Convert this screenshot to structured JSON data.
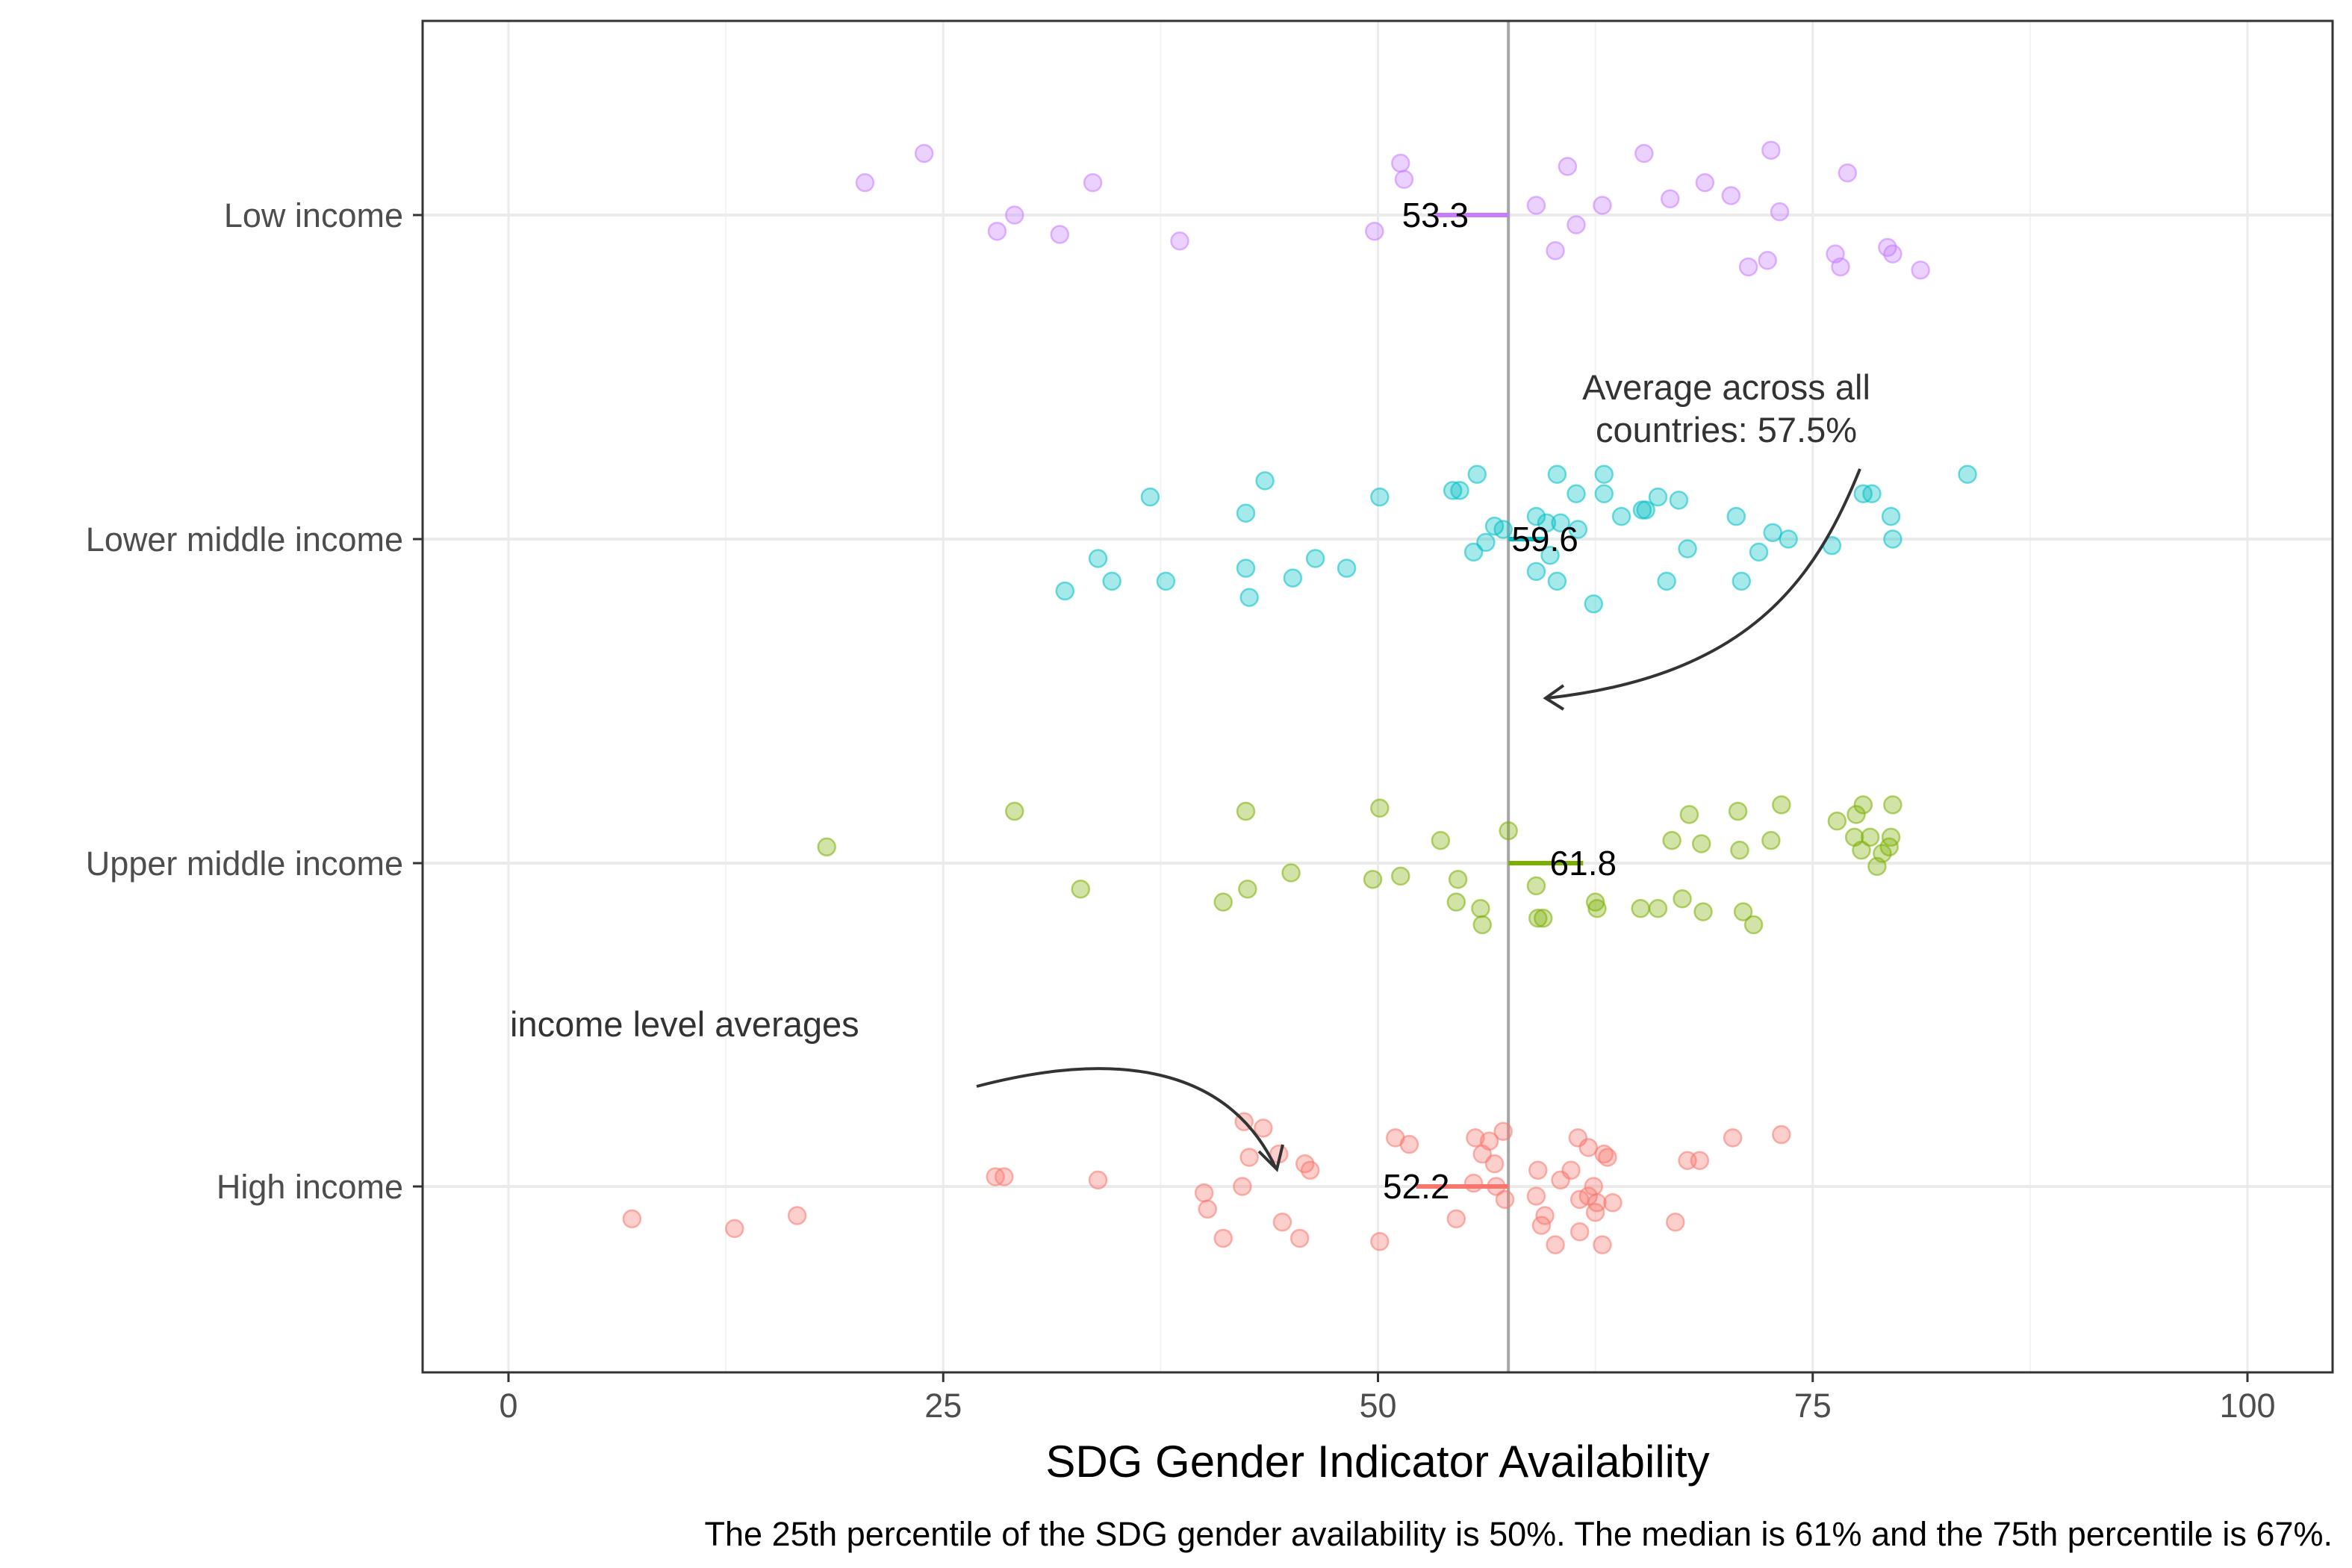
{
  "chart_data": {
    "type": "scatter",
    "title": "",
    "xlabel": "SDG Gender Indicator Availability",
    "ylabel": "",
    "xlim": [
      -5,
      105
    ],
    "x_ticks": [
      "0",
      "25",
      "50",
      "75",
      "100"
    ],
    "x_tick_values": [
      0,
      25,
      50,
      75,
      100
    ],
    "grid": true,
    "legend": "none",
    "categories": [
      "Low income",
      "Lower middle income",
      "Upper middle income",
      "High income"
    ],
    "overall_average": 57.5,
    "series": [
      {
        "name": "Low income",
        "color": "#c77cff",
        "mean": 53.3,
        "mean_label": "53.3",
        "points": [
          [
            20.5,
            0.1
          ],
          [
            23.9,
            0.19
          ],
          [
            28.1,
            -0.05
          ],
          [
            29.1,
            0.0
          ],
          [
            31.7,
            -0.06
          ],
          [
            33.6,
            0.1
          ],
          [
            38.6,
            -0.08
          ],
          [
            49.8,
            -0.05
          ],
          [
            51.3,
            0.16
          ],
          [
            51.5,
            0.11
          ],
          [
            59.1,
            0.03
          ],
          [
            60.2,
            -0.11
          ],
          [
            60.9,
            0.15
          ],
          [
            61.4,
            -0.03
          ],
          [
            62.9,
            0.03
          ],
          [
            65.3,
            0.19
          ],
          [
            66.8,
            0.05
          ],
          [
            68.8,
            0.1
          ],
          [
            70.3,
            0.06
          ],
          [
            71.3,
            -0.16
          ],
          [
            72.4,
            -0.14
          ],
          [
            72.6,
            0.2
          ],
          [
            73.1,
            0.01
          ],
          [
            76.3,
            -0.12
          ],
          [
            76.6,
            -0.16
          ],
          [
            77.0,
            0.13
          ],
          [
            79.3,
            -0.1
          ],
          [
            79.6,
            -0.12
          ],
          [
            81.2,
            -0.17
          ]
        ]
      },
      {
        "name": "Lower middle income",
        "color": "#00bfc4",
        "mean": 59.6,
        "mean_label": "59.6",
        "points": [
          [
            32.0,
            -0.16
          ],
          [
            33.9,
            -0.06
          ],
          [
            34.7,
            -0.13
          ],
          [
            36.9,
            0.13
          ],
          [
            37.8,
            -0.13
          ],
          [
            42.4,
            -0.09
          ],
          [
            42.4,
            0.08
          ],
          [
            42.6,
            -0.18
          ],
          [
            43.5,
            0.18
          ],
          [
            45.1,
            -0.12
          ],
          [
            46.4,
            -0.06
          ],
          [
            48.2,
            -0.09
          ],
          [
            50.1,
            0.13
          ],
          [
            54.3,
            0.15
          ],
          [
            54.7,
            0.15
          ],
          [
            55.5,
            -0.04
          ],
          [
            55.7,
            0.2
          ],
          [
            56.2,
            -0.01
          ],
          [
            56.7,
            0.04
          ],
          [
            57.2,
            0.03
          ],
          [
            59.1,
            -0.1
          ],
          [
            59.1,
            0.07
          ],
          [
            59.7,
            0.05
          ],
          [
            59.9,
            -0.05
          ],
          [
            60.3,
            0.2
          ],
          [
            60.3,
            -0.13
          ],
          [
            60.5,
            0.05
          ],
          [
            61.4,
            0.14
          ],
          [
            61.5,
            0.03
          ],
          [
            62.4,
            -0.2
          ],
          [
            63.0,
            0.14
          ],
          [
            63.0,
            0.2
          ],
          [
            64.0,
            0.07
          ],
          [
            65.2,
            0.09
          ],
          [
            65.4,
            0.09
          ],
          [
            66.1,
            0.13
          ],
          [
            66.6,
            -0.13
          ],
          [
            67.3,
            0.12
          ],
          [
            67.8,
            -0.03
          ],
          [
            70.6,
            0.07
          ],
          [
            70.9,
            -0.13
          ],
          [
            71.9,
            -0.04
          ],
          [
            72.7,
            0.02
          ],
          [
            73.6,
            0.0
          ],
          [
            76.1,
            -0.02
          ],
          [
            77.9,
            0.14
          ],
          [
            78.4,
            0.14
          ],
          [
            79.5,
            0.07
          ],
          [
            79.6,
            0.0
          ],
          [
            83.9,
            0.2
          ]
        ]
      },
      {
        "name": "Upper middle income",
        "color": "#7cae00",
        "mean": 61.8,
        "mean_label": "61.8",
        "points": [
          [
            18.3,
            0.05
          ],
          [
            29.1,
            0.16
          ],
          [
            32.9,
            -0.08
          ],
          [
            41.1,
            -0.12
          ],
          [
            42.4,
            0.16
          ],
          [
            42.5,
            -0.08
          ],
          [
            45.0,
            -0.03
          ],
          [
            49.7,
            -0.05
          ],
          [
            50.1,
            0.17
          ],
          [
            51.3,
            -0.04
          ],
          [
            53.6,
            0.07
          ],
          [
            54.5,
            -0.12
          ],
          [
            54.6,
            -0.05
          ],
          [
            55.9,
            -0.14
          ],
          [
            56.0,
            -0.19
          ],
          [
            57.5,
            0.1
          ],
          [
            59.1,
            -0.07
          ],
          [
            59.2,
            -0.17
          ],
          [
            59.5,
            -0.17
          ],
          [
            62.5,
            -0.12
          ],
          [
            62.6,
            -0.14
          ],
          [
            65.1,
            -0.14
          ],
          [
            66.1,
            -0.14
          ],
          [
            66.9,
            0.07
          ],
          [
            67.5,
            -0.11
          ],
          [
            67.9,
            0.15
          ],
          [
            68.6,
            0.06
          ],
          [
            68.7,
            -0.15
          ],
          [
            70.7,
            0.16
          ],
          [
            70.8,
            0.04
          ],
          [
            71.0,
            -0.15
          ],
          [
            71.6,
            -0.19
          ],
          [
            72.6,
            0.07
          ],
          [
            73.2,
            0.18
          ],
          [
            76.4,
            0.13
          ],
          [
            77.4,
            0.08
          ],
          [
            77.5,
            0.15
          ],
          [
            77.8,
            0.04
          ],
          [
            77.9,
            0.18
          ],
          [
            78.3,
            0.08
          ],
          [
            78.7,
            -0.01
          ],
          [
            79.0,
            0.03
          ],
          [
            79.4,
            0.05
          ],
          [
            79.5,
            0.08
          ],
          [
            79.6,
            0.18
          ]
        ]
      },
      {
        "name": "High income",
        "color": "#f8766d",
        "mean": 52.2,
        "mean_label": "52.2",
        "points": [
          [
            7.1,
            -0.1
          ],
          [
            13.0,
            -0.13
          ],
          [
            16.6,
            -0.09
          ],
          [
            28.0,
            0.03
          ],
          [
            28.5,
            0.03
          ],
          [
            33.9,
            0.02
          ],
          [
            40.0,
            -0.02
          ],
          [
            40.2,
            -0.07
          ],
          [
            41.1,
            -0.16
          ],
          [
            42.2,
            0.0
          ],
          [
            42.3,
            0.2
          ],
          [
            42.6,
            0.09
          ],
          [
            43.4,
            0.18
          ],
          [
            44.3,
            0.1
          ],
          [
            44.5,
            -0.11
          ],
          [
            45.5,
            -0.16
          ],
          [
            45.8,
            0.07
          ],
          [
            46.1,
            0.05
          ],
          [
            50.1,
            -0.17
          ],
          [
            51.0,
            0.15
          ],
          [
            51.8,
            0.13
          ],
          [
            54.5,
            -0.1
          ],
          [
            55.5,
            0.01
          ],
          [
            55.6,
            0.15
          ],
          [
            56.0,
            0.1
          ],
          [
            56.4,
            0.14
          ],
          [
            56.7,
            0.07
          ],
          [
            56.8,
            0.0
          ],
          [
            57.2,
            0.17
          ],
          [
            57.3,
            -0.04
          ],
          [
            59.1,
            -0.03
          ],
          [
            59.2,
            0.05
          ],
          [
            59.4,
            -0.12
          ],
          [
            59.6,
            -0.09
          ],
          [
            60.2,
            -0.18
          ],
          [
            60.5,
            0.02
          ],
          [
            61.1,
            0.05
          ],
          [
            61.5,
            0.15
          ],
          [
            61.6,
            -0.14
          ],
          [
            61.6,
            -0.04
          ],
          [
            62.1,
            -0.03
          ],
          [
            62.1,
            0.12
          ],
          [
            62.4,
            0.0
          ],
          [
            62.5,
            -0.08
          ],
          [
            62.6,
            -0.05
          ],
          [
            62.9,
            -0.18
          ],
          [
            63.0,
            0.1
          ],
          [
            63.2,
            0.09
          ],
          [
            63.5,
            -0.05
          ],
          [
            67.1,
            -0.11
          ],
          [
            67.8,
            0.08
          ],
          [
            68.5,
            0.08
          ],
          [
            70.4,
            0.15
          ],
          [
            73.2,
            0.16
          ]
        ]
      }
    ],
    "annotations": [
      {
        "text_lines": [
          "Average across all",
          "countries: 57.5%"
        ],
        "anchor": "upper middle, above arrow to average line"
      },
      {
        "text_lines": [
          "income level averages"
        ],
        "anchor": "lower left, arrow to high income mean"
      }
    ],
    "caption": "The 25th percentile of the SDG gender availability is 50%. The median is 61% and the 75th percentile is 67%."
  }
}
